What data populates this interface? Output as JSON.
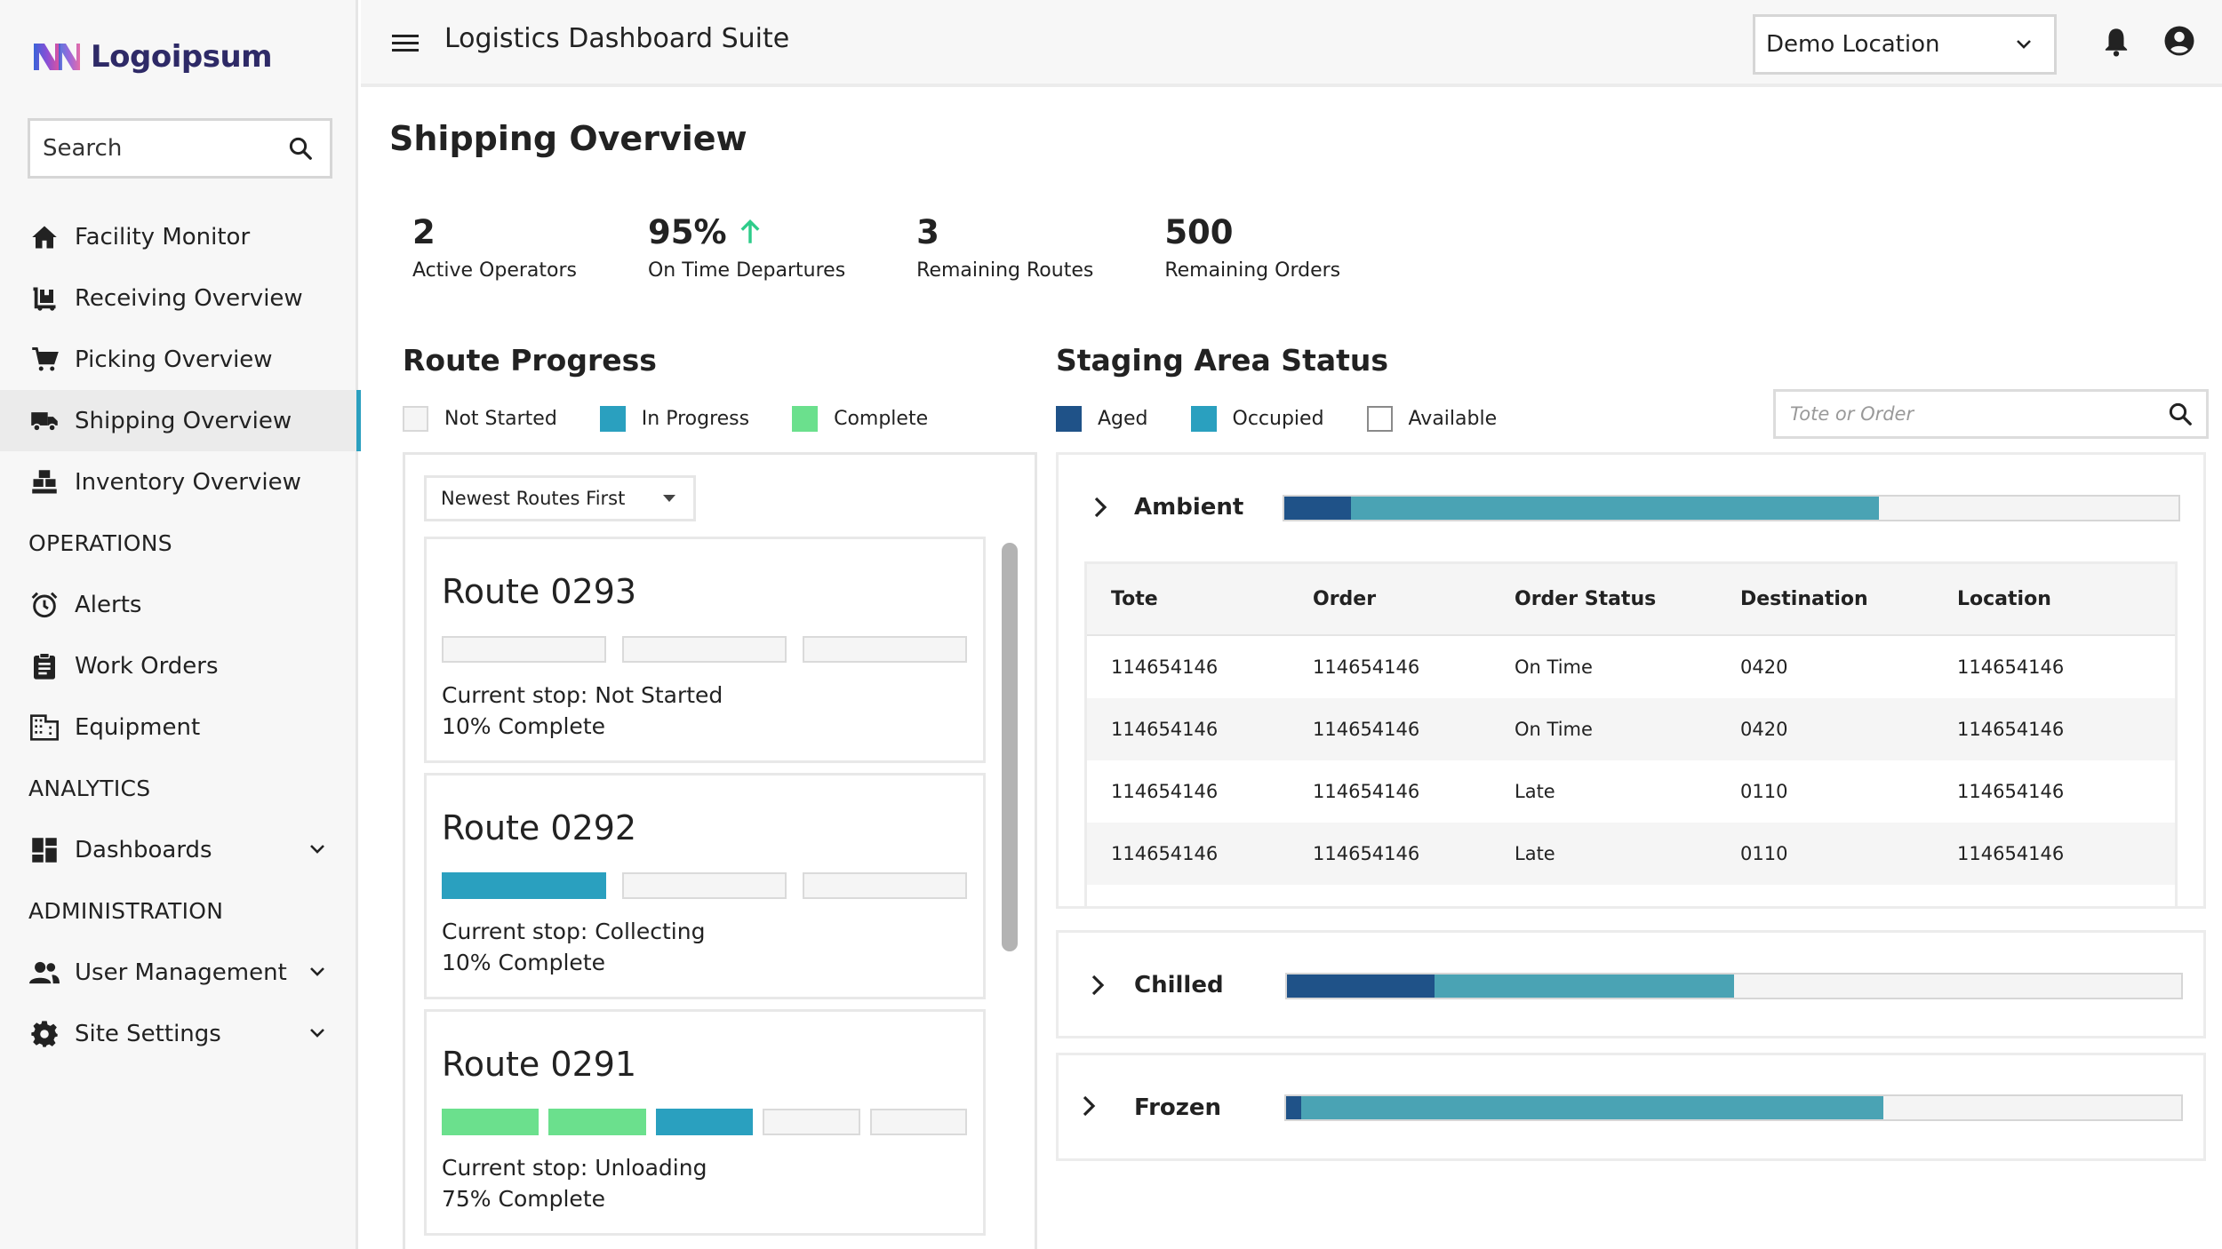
{
  "brand": {
    "name": "Logoipsum"
  },
  "sidebar": {
    "search_label": "Search",
    "items": [
      {
        "label": "Facility Monitor",
        "icon": "home-icon"
      },
      {
        "label": "Receiving Overview",
        "icon": "receiving-icon"
      },
      {
        "label": "Picking Overview",
        "icon": "cart-icon"
      },
      {
        "label": "Shipping Overview",
        "icon": "truck-icon"
      },
      {
        "label": "Inventory Overview",
        "icon": "inventory-icon"
      }
    ],
    "sections": {
      "operations": {
        "title": "OPERATIONS",
        "items": [
          {
            "label": "Alerts",
            "icon": "alarm-icon"
          },
          {
            "label": "Work Orders",
            "icon": "clipboard-icon"
          },
          {
            "label": "Equipment",
            "icon": "building-icon"
          }
        ]
      },
      "analytics": {
        "title": "ANALYTICS",
        "items": [
          {
            "label": "Dashboards",
            "icon": "dashboard-icon"
          }
        ]
      },
      "administration": {
        "title": "ADMINISTRATION",
        "items": [
          {
            "label": "User Management",
            "icon": "users-icon"
          },
          {
            "label": "Site Settings",
            "icon": "gear-icon"
          }
        ]
      }
    }
  },
  "topbar": {
    "title": "Logistics Dashboard Suite",
    "location": "Demo Location"
  },
  "page": {
    "title": "Shipping Overview",
    "kpis": [
      {
        "value": "2",
        "label": "Active Operators"
      },
      {
        "value": "95%",
        "label": "On Time Departures",
        "trend": "up"
      },
      {
        "value": "3",
        "label": "Remaining Routes"
      },
      {
        "value": "500",
        "label": "Remaining Orders"
      }
    ]
  },
  "route_progress": {
    "title": "Route Progress",
    "legend": [
      {
        "label": "Not Started",
        "color": "#f5f5f5"
      },
      {
        "label": "In Progress",
        "color": "#2aa0bf"
      },
      {
        "label": "Complete",
        "color": "#6be08d"
      }
    ],
    "sort": "Newest Routes First",
    "routes": [
      {
        "name": "Route 0293",
        "stop": "Current stop: Not Started",
        "progress": "10% Complete",
        "stops": [
          "not-started",
          "not-started",
          "not-started"
        ]
      },
      {
        "name": "Route 0292",
        "stop": "Current stop: Collecting",
        "progress": "10% Complete",
        "stops": [
          "in-progress",
          "not-started",
          "not-started"
        ]
      },
      {
        "name": "Route 0291",
        "stop": "Current stop: Unloading",
        "progress": "75% Complete",
        "stops": [
          "complete",
          "complete",
          "in-progress",
          "not-started",
          "not-started"
        ]
      }
    ]
  },
  "staging": {
    "title": "Staging Area Status",
    "legend": [
      {
        "label": "Aged",
        "color": "#1f5288"
      },
      {
        "label": "Occupied",
        "color": "#4aa3b4"
      },
      {
        "label": "Available",
        "color": "#ffffff"
      }
    ],
    "search_placeholder": "Tote or Order",
    "zones": [
      {
        "name": "Ambient",
        "aged": 0.075,
        "occupied": 0.59
      },
      {
        "name": "Chilled",
        "aged": 0.165,
        "occupied": 0.335
      },
      {
        "name": "Frozen",
        "aged": 0.017,
        "occupied": 0.65
      }
    ],
    "table": {
      "headers": [
        "Tote",
        "Order",
        "Order Status",
        "Destination",
        "Location"
      ],
      "rows": [
        [
          "114654146",
          "114654146",
          "On Time",
          "0420",
          "114654146"
        ],
        [
          "114654146",
          "114654146",
          "On Time",
          "0420",
          "114654146"
        ],
        [
          "114654146",
          "114654146",
          "Late",
          "0110",
          "114654146"
        ],
        [
          "114654146",
          "114654146",
          "Late",
          "0110",
          "114654146"
        ]
      ]
    }
  }
}
